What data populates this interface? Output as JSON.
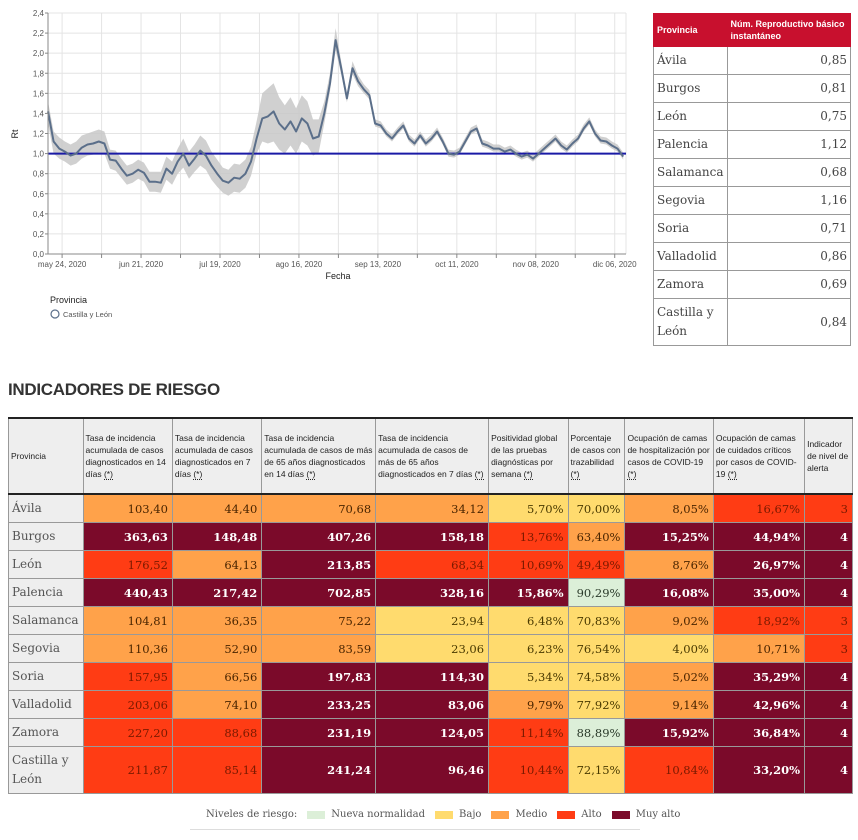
{
  "chart_data": {
    "type": "line",
    "title": "",
    "xlabel": "Fecha",
    "ylabel": "Rt",
    "ylim": [
      0,
      2.4
    ],
    "yticks": [
      "0,0",
      "0,2",
      "0,4",
      "0,6",
      "0,8",
      "1,0",
      "1,2",
      "1,4",
      "1,6",
      "1,8",
      "2,0",
      "2,2",
      "2,4"
    ],
    "xtick_labels": [
      "may 24, 2020",
      "jun 21, 2020",
      "jul 19, 2020",
      "ago 16, 2020",
      "sep 13, 2020",
      "oct 11, 2020",
      "nov 08, 2020",
      "dic 06, 2020"
    ],
    "x_start": "2020-05-19",
    "x_end": "2020-12-10",
    "grid": true,
    "reference_line": {
      "y": 1.0,
      "color": "#1a1aa6"
    },
    "legend": {
      "title": "Provincia",
      "position": "bottom-left",
      "entries": [
        "Castilla y León"
      ]
    },
    "series": [
      {
        "name": "Castilla y León",
        "color": "#5b6f8a",
        "band_color": "#c8c8c8",
        "day_offsets": [
          0,
          2,
          4,
          6,
          8,
          10,
          12,
          14,
          16,
          18,
          20,
          22,
          24,
          26,
          28,
          30,
          32,
          34,
          36,
          38,
          40,
          42,
          44,
          46,
          48,
          50,
          52,
          54,
          56,
          58,
          60,
          62,
          64,
          66,
          68,
          70,
          72,
          74,
          76,
          78,
          80,
          82,
          84,
          86,
          88,
          90,
          92,
          94,
          96,
          98,
          100,
          102,
          104,
          106,
          108,
          110,
          112,
          114,
          116,
          118,
          120,
          122,
          124,
          126,
          128,
          130,
          132,
          134,
          136,
          138,
          140,
          142,
          144,
          146,
          148,
          150,
          152,
          154,
          156,
          158,
          160,
          162,
          164,
          166,
          168,
          170,
          172,
          174,
          176,
          178,
          180,
          182,
          184,
          186,
          188,
          190,
          192,
          194,
          196,
          198,
          200,
          202,
          204
        ],
        "values": [
          1.42,
          1.12,
          1.05,
          1.02,
          0.98,
          1.0,
          1.06,
          1.09,
          1.1,
          1.12,
          1.1,
          0.94,
          0.93,
          0.85,
          0.78,
          0.8,
          0.84,
          0.81,
          0.72,
          0.72,
          0.71,
          0.85,
          0.8,
          0.92,
          1.0,
          0.88,
          0.95,
          1.03,
          0.98,
          0.88,
          0.8,
          0.73,
          0.71,
          0.76,
          0.75,
          0.8,
          0.92,
          1.15,
          1.35,
          1.37,
          1.42,
          1.3,
          1.24,
          1.32,
          1.22,
          1.35,
          1.3,
          1.15,
          1.17,
          1.4,
          1.7,
          2.13,
          1.85,
          1.55,
          1.85,
          1.72,
          1.64,
          1.58,
          1.3,
          1.28,
          1.2,
          1.15,
          1.22,
          1.28,
          1.15,
          1.1,
          1.18,
          1.1,
          1.15,
          1.22,
          1.12,
          1.0,
          0.99,
          1.02,
          1.12,
          1.22,
          1.25,
          1.1,
          1.08,
          1.05,
          1.05,
          1.02,
          1.04,
          1.0,
          0.97,
          0.99,
          0.95,
          1.0,
          1.05,
          1.1,
          1.15,
          1.08,
          1.04,
          1.1,
          1.15,
          1.25,
          1.32,
          1.2,
          1.13,
          1.12,
          1.08,
          1.05,
          0.97
        ],
        "lower": [
          1.3,
          1.0,
          0.95,
          0.92,
          0.88,
          0.9,
          0.95,
          0.98,
          0.99,
          1.01,
          1.0,
          0.85,
          0.83,
          0.76,
          0.69,
          0.71,
          0.75,
          0.72,
          0.62,
          0.62,
          0.61,
          0.74,
          0.69,
          0.8,
          0.86,
          0.75,
          0.82,
          0.88,
          0.84,
          0.74,
          0.67,
          0.61,
          0.58,
          0.62,
          0.61,
          0.66,
          0.78,
          1.0,
          1.12,
          1.1,
          1.12,
          1.04,
          1.0,
          1.08,
          1.0,
          1.12,
          1.08,
          0.98,
          1.01,
          1.3,
          1.62,
          2.03,
          1.79,
          1.51,
          1.79,
          1.67,
          1.6,
          1.54,
          1.27,
          1.25,
          1.17,
          1.12,
          1.19,
          1.25,
          1.12,
          1.07,
          1.15,
          1.07,
          1.12,
          1.19,
          1.09,
          0.97,
          0.96,
          0.99,
          1.09,
          1.19,
          1.22,
          1.07,
          1.05,
          1.02,
          1.02,
          0.99,
          1.01,
          0.97,
          0.94,
          0.96,
          0.92,
          0.97,
          1.02,
          1.07,
          1.12,
          1.05,
          1.01,
          1.07,
          1.12,
          1.22,
          1.29,
          1.17,
          1.1,
          1.09,
          1.05,
          1.02,
          0.94
        ],
        "upper": [
          1.52,
          1.22,
          1.16,
          1.12,
          1.09,
          1.12,
          1.18,
          1.2,
          1.22,
          1.24,
          1.22,
          1.04,
          1.03,
          0.95,
          0.88,
          0.9,
          0.94,
          0.91,
          0.82,
          0.82,
          0.82,
          0.97,
          0.92,
          1.05,
          1.15,
          1.02,
          1.09,
          1.18,
          1.13,
          1.02,
          0.94,
          0.86,
          0.84,
          0.9,
          0.89,
          0.94,
          1.07,
          1.32,
          1.6,
          1.65,
          1.7,
          1.56,
          1.48,
          1.56,
          1.45,
          1.58,
          1.52,
          1.34,
          1.34,
          1.52,
          1.8,
          2.25,
          1.92,
          1.6,
          1.92,
          1.78,
          1.69,
          1.63,
          1.34,
          1.32,
          1.24,
          1.19,
          1.26,
          1.32,
          1.19,
          1.14,
          1.22,
          1.14,
          1.19,
          1.26,
          1.16,
          1.04,
          1.03,
          1.06,
          1.16,
          1.26,
          1.29,
          1.14,
          1.12,
          1.09,
          1.09,
          1.06,
          1.08,
          1.04,
          1.01,
          1.03,
          0.99,
          1.04,
          1.09,
          1.14,
          1.19,
          1.12,
          1.08,
          1.14,
          1.19,
          1.29,
          1.36,
          1.24,
          1.17,
          1.16,
          1.12,
          1.09,
          1.01
        ]
      }
    ]
  },
  "rt_table": {
    "headers": [
      "Provincia",
      "Núm. Reproductivo básico instantáneo"
    ],
    "rows": [
      {
        "provincia": "Ávila",
        "valor": "0,85"
      },
      {
        "provincia": "Burgos",
        "valor": "0,81"
      },
      {
        "provincia": "León",
        "valor": "0,75"
      },
      {
        "provincia": "Palencia",
        "valor": "1,12"
      },
      {
        "provincia": "Salamanca",
        "valor": "0,68"
      },
      {
        "provincia": "Segovia",
        "valor": "1,16"
      },
      {
        "provincia": "Soria",
        "valor": "0,71"
      },
      {
        "provincia": "Valladolid",
        "valor": "0,86"
      },
      {
        "provincia": "Zamora",
        "valor": "0,69"
      },
      {
        "provincia": "Castilla y León",
        "valor": "0,84"
      }
    ]
  },
  "risk": {
    "title": "INDICADORES DE RIESGO",
    "headers": [
      {
        "text": "Provincia",
        "ast": ""
      },
      {
        "text": "Tasa de incidencia acumulada de casos diagnosticados en 14 días ",
        "ast": "(*)"
      },
      {
        "text": "Tasa de incidencia acumulada de casos diagnosticados en 7 días ",
        "ast": "(*)"
      },
      {
        "text": "Tasa de incidencia acumulada de casos de más de 65 años diagnosticados en 14 días ",
        "ast": "(*)"
      },
      {
        "text": "Tasa de incidencia acumulada de casos de más de 65 años diagnosticados en 7 días ",
        "ast": "(*)"
      },
      {
        "text": "Positividad global de las pruebas diagnósticas por semana ",
        "ast": "(*)"
      },
      {
        "text": "Porcentaje de casos con trazabilidad ",
        "ast": "(*)"
      },
      {
        "text": "Ocupación de camas de hospitalización por casos de COVID-19 ",
        "ast": "(*)"
      },
      {
        "text": "Ocupación de camas de cuidados críticos por casos de COVID-19 ",
        "ast": "(*)"
      },
      {
        "text": "Indicador de nivel de alerta",
        "ast": ""
      }
    ],
    "levels": {
      "nueva": {
        "label": "Nueva normalidad",
        "color": "#dcefd8"
      },
      "bajo": {
        "label": "Bajo",
        "color": "#ffdb6e"
      },
      "medio": {
        "label": "Medio",
        "color": "#ffa24a"
      },
      "alto": {
        "label": "Alto",
        "color": "#ff3c14"
      },
      "muy-alto": {
        "label": "Muy alto",
        "color": "#7b0a2a"
      }
    },
    "rows": [
      {
        "provincia": "Ávila",
        "cells": [
          [
            "103,40",
            "medio"
          ],
          [
            "44,40",
            "medio"
          ],
          [
            "70,68",
            "medio"
          ],
          [
            "34,12",
            "medio"
          ],
          [
            "5,70%",
            "bajo"
          ],
          [
            "70,00%",
            "bajo"
          ],
          [
            "8,05%",
            "medio"
          ],
          [
            "16,67%",
            "alto"
          ],
          [
            "3",
            "alto"
          ]
        ]
      },
      {
        "provincia": "Burgos",
        "cells": [
          [
            "363,63",
            "muy-alto"
          ],
          [
            "148,48",
            "muy-alto"
          ],
          [
            "407,26",
            "muy-alto"
          ],
          [
            "158,18",
            "muy-alto"
          ],
          [
            "13,76%",
            "alto"
          ],
          [
            "63,40%",
            "medio"
          ],
          [
            "15,25%",
            "muy-alto"
          ],
          [
            "44,94%",
            "muy-alto"
          ],
          [
            "4",
            "muy-alto"
          ]
        ]
      },
      {
        "provincia": "León",
        "cells": [
          [
            "176,52",
            "alto"
          ],
          [
            "64,13",
            "medio"
          ],
          [
            "213,85",
            "muy-alto"
          ],
          [
            "68,34",
            "alto"
          ],
          [
            "10,69%",
            "alto"
          ],
          [
            "49,49%",
            "alto"
          ],
          [
            "8,76%",
            "medio"
          ],
          [
            "26,97%",
            "muy-alto"
          ],
          [
            "4",
            "muy-alto"
          ]
        ]
      },
      {
        "provincia": "Palencia",
        "cells": [
          [
            "440,43",
            "muy-alto"
          ],
          [
            "217,42",
            "muy-alto"
          ],
          [
            "702,85",
            "muy-alto"
          ],
          [
            "328,16",
            "muy-alto"
          ],
          [
            "15,86%",
            "muy-alto"
          ],
          [
            "90,29%",
            "nueva"
          ],
          [
            "16,08%",
            "muy-alto"
          ],
          [
            "35,00%",
            "muy-alto"
          ],
          [
            "4",
            "muy-alto"
          ]
        ]
      },
      {
        "provincia": "Salamanca",
        "cells": [
          [
            "104,81",
            "medio"
          ],
          [
            "36,35",
            "medio"
          ],
          [
            "75,22",
            "medio"
          ],
          [
            "23,94",
            "bajo"
          ],
          [
            "6,48%",
            "bajo"
          ],
          [
            "70,83%",
            "bajo"
          ],
          [
            "9,02%",
            "medio"
          ],
          [
            "18,92%",
            "alto"
          ],
          [
            "3",
            "alto"
          ]
        ]
      },
      {
        "provincia": "Segovia",
        "cells": [
          [
            "110,36",
            "medio"
          ],
          [
            "52,90",
            "medio"
          ],
          [
            "83,59",
            "medio"
          ],
          [
            "23,06",
            "bajo"
          ],
          [
            "6,23%",
            "bajo"
          ],
          [
            "76,54%",
            "bajo"
          ],
          [
            "4,00%",
            "bajo"
          ],
          [
            "10,71%",
            "medio"
          ],
          [
            "3",
            "alto"
          ]
        ]
      },
      {
        "provincia": "Soria",
        "cells": [
          [
            "157,95",
            "alto"
          ],
          [
            "66,56",
            "medio"
          ],
          [
            "197,83",
            "muy-alto"
          ],
          [
            "114,30",
            "muy-alto"
          ],
          [
            "5,34%",
            "bajo"
          ],
          [
            "74,58%",
            "bajo"
          ],
          [
            "5,02%",
            "medio"
          ],
          [
            "35,29%",
            "muy-alto"
          ],
          [
            "4",
            "muy-alto"
          ]
        ]
      },
      {
        "provincia": "Valladolid",
        "cells": [
          [
            "203,06",
            "alto"
          ],
          [
            "74,10",
            "medio"
          ],
          [
            "233,25",
            "muy-alto"
          ],
          [
            "83,06",
            "muy-alto"
          ],
          [
            "9,79%",
            "medio"
          ],
          [
            "77,92%",
            "bajo"
          ],
          [
            "9,14%",
            "medio"
          ],
          [
            "42,96%",
            "muy-alto"
          ],
          [
            "4",
            "muy-alto"
          ]
        ]
      },
      {
        "provincia": "Zamora",
        "cells": [
          [
            "227,20",
            "alto"
          ],
          [
            "88,68",
            "alto"
          ],
          [
            "231,19",
            "muy-alto"
          ],
          [
            "124,05",
            "muy-alto"
          ],
          [
            "11,14%",
            "alto"
          ],
          [
            "88,89%",
            "nueva"
          ],
          [
            "15,92%",
            "muy-alto"
          ],
          [
            "36,84%",
            "muy-alto"
          ],
          [
            "4",
            "muy-alto"
          ]
        ]
      },
      {
        "provincia": "Castilla y León",
        "cells": [
          [
            "211,87",
            "alto"
          ],
          [
            "85,14",
            "alto"
          ],
          [
            "241,24",
            "muy-alto"
          ],
          [
            "96,46",
            "muy-alto"
          ],
          [
            "10,44%",
            "alto"
          ],
          [
            "72,15%",
            "bajo"
          ],
          [
            "10,84%",
            "alto"
          ],
          [
            "33,20%",
            "muy-alto"
          ],
          [
            "4",
            "muy-alto"
          ]
        ]
      }
    ],
    "legend_label": "Niveles de riesgo:",
    "legend_order": [
      "nueva",
      "bajo",
      "medio",
      "alto",
      "muy-alto"
    ]
  }
}
